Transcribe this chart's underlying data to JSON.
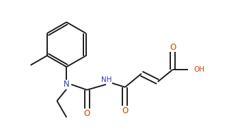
{
  "bg_color": "#ffffff",
  "line_color": "#1a1a1a",
  "color_N": "#3333bb",
  "color_O": "#cc4400",
  "lw": 1.4,
  "dbo": 0.012,
  "fs": 7.5,
  "fig_w": 3.32,
  "fig_h": 1.92,
  "dpi": 100,
  "xlim": [
    0,
    3.32
  ],
  "ylim": [
    0,
    1.92
  ]
}
